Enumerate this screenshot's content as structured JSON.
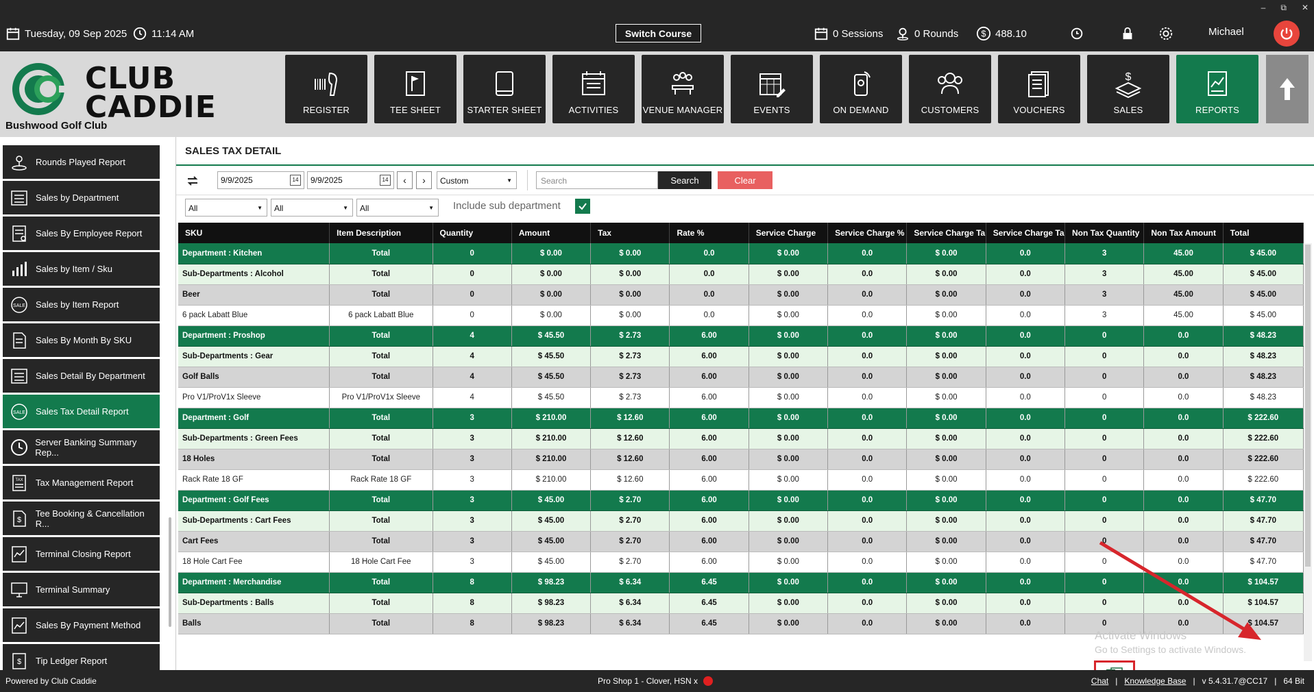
{
  "topbar": {
    "date": "Tuesday,  09 Sep 2025",
    "time": "11:14 AM",
    "switch_course": "Switch Course",
    "sessions": "0 Sessions",
    "rounds": "0 Rounds",
    "balance": "488.10",
    "user": "Michael"
  },
  "brand": {
    "line1": "CLUB",
    "line2": "CADDIE",
    "club_name": "Bushwood Golf Club"
  },
  "nav": [
    {
      "label": "REGISTER",
      "icon": "barcode-scanner-icon"
    },
    {
      "label": "TEE SHEET",
      "icon": "flag-icon"
    },
    {
      "label": "STARTER SHEET",
      "icon": "tablet-icon"
    },
    {
      "label": "ACTIVITIES",
      "icon": "calendar-list-icon"
    },
    {
      "label": "VENUE MANAGER",
      "icon": "group-table-icon"
    },
    {
      "label": "EVENTS",
      "icon": "calendar-edit-icon"
    },
    {
      "label": "ON DEMAND",
      "icon": "phone-signal-icon"
    },
    {
      "label": "CUSTOMERS",
      "icon": "people-icon"
    },
    {
      "label": "VOUCHERS",
      "icon": "voucher-icon"
    },
    {
      "label": "SALES",
      "icon": "dollar-stack-icon"
    },
    {
      "label": "REPORTS",
      "icon": "report-chart-icon"
    }
  ],
  "sidebar": {
    "items": [
      {
        "label": "Rounds Played Report",
        "icon": "golf-tee-icon",
        "active": false
      },
      {
        "label": "Sales by Department",
        "icon": "list-icon",
        "active": false
      },
      {
        "label": "Sales By Employee Report",
        "icon": "employee-report-icon",
        "active": false
      },
      {
        "label": "Sales by Item / Sku",
        "icon": "bar-chart-icon",
        "active": false
      },
      {
        "label": "Sales by Item Report",
        "icon": "sale-tag-icon",
        "active": false
      },
      {
        "label": "Sales By Month By SKU",
        "icon": "document-icon",
        "active": false
      },
      {
        "label": "Sales Detail By Department",
        "icon": "list-icon",
        "active": false
      },
      {
        "label": "Sales Tax Detail Report",
        "icon": "sale-tag-icon",
        "active": true
      },
      {
        "label": "Server Banking Summary Rep...",
        "icon": "clock-icon",
        "active": false
      },
      {
        "label": "Tax Management Report",
        "icon": "tax-doc-icon",
        "active": false
      },
      {
        "label": "Tee Booking & Cancellation R...",
        "icon": "document-dollar-icon",
        "active": false
      },
      {
        "label": "Terminal Closing Report",
        "icon": "terminal-report-icon",
        "active": false
      },
      {
        "label": "Terminal Summary",
        "icon": "monitor-icon",
        "active": false
      },
      {
        "label": "Sales By Payment Method",
        "icon": "chart-doc-icon",
        "active": false
      },
      {
        "label": "Tip Ledger Report",
        "icon": "ledger-icon",
        "active": false
      }
    ]
  },
  "report": {
    "title": "SALES TAX DETAIL",
    "date_from": "9/9/2025",
    "date_to": "9/9/2025",
    "period": "Custom",
    "search_placeholder": "Search",
    "search_label": "Search",
    "clear_label": "Clear",
    "filter1": "All",
    "filter2": "All",
    "filter3": "All",
    "include_sub": "Include sub department",
    "columns": [
      "SKU",
      "Item Description",
      "Quantity",
      "Amount",
      "Tax",
      "Rate %",
      "Service Charge",
      "Service Charge %",
      "Service Charge Ta",
      "Service Charge Ta",
      "Non Tax Quantity",
      "Non Tax Amount",
      "Total"
    ],
    "rows": [
      {
        "type": "dept",
        "cells": [
          "Department : Kitchen",
          "Total",
          "0",
          "$ 0.00",
          "$ 0.00",
          "0.0",
          "$ 0.00",
          "0.0",
          "$ 0.00",
          "0.0",
          "3",
          "45.00",
          "$ 45.00"
        ]
      },
      {
        "type": "sub",
        "cells": [
          "Sub-Departments : Alcohol",
          "Total",
          "0",
          "$ 0.00",
          "$ 0.00",
          "0.0",
          "$ 0.00",
          "0.0",
          "$ 0.00",
          "0.0",
          "3",
          "45.00",
          "$ 45.00"
        ]
      },
      {
        "type": "grp",
        "cells": [
          "Beer",
          "Total",
          "0",
          "$ 0.00",
          "$ 0.00",
          "0.0",
          "$ 0.00",
          "0.0",
          "$ 0.00",
          "0.0",
          "3",
          "45.00",
          "$ 45.00"
        ]
      },
      {
        "type": "item",
        "cells": [
          "6 pack Labatt Blue",
          "6 pack Labatt Blue",
          "0",
          "$ 0.00",
          "$ 0.00",
          "0.0",
          "$ 0.00",
          "0.0",
          "$ 0.00",
          "0.0",
          "3",
          "45.00",
          "$ 45.00"
        ]
      },
      {
        "type": "dept",
        "cells": [
          "Department : Proshop",
          "Total",
          "4",
          "$ 45.50",
          "$ 2.73",
          "6.00",
          "$ 0.00",
          "0.0",
          "$ 0.00",
          "0.0",
          "0",
          "0.0",
          "$ 48.23"
        ]
      },
      {
        "type": "sub",
        "cells": [
          "Sub-Departments : Gear",
          "Total",
          "4",
          "$ 45.50",
          "$ 2.73",
          "6.00",
          "$ 0.00",
          "0.0",
          "$ 0.00",
          "0.0",
          "0",
          "0.0",
          "$ 48.23"
        ]
      },
      {
        "type": "grp",
        "cells": [
          "Golf Balls",
          "Total",
          "4",
          "$ 45.50",
          "$ 2.73",
          "6.00",
          "$ 0.00",
          "0.0",
          "$ 0.00",
          "0.0",
          "0",
          "0.0",
          "$ 48.23"
        ]
      },
      {
        "type": "item",
        "cells": [
          "Pro V1/ProV1x Sleeve",
          "Pro V1/ProV1x Sleeve",
          "4",
          "$ 45.50",
          "$ 2.73",
          "6.00",
          "$ 0.00",
          "0.0",
          "$ 0.00",
          "0.0",
          "0",
          "0.0",
          "$ 48.23"
        ]
      },
      {
        "type": "dept",
        "cells": [
          "Department : Golf",
          "Total",
          "3",
          "$ 210.00",
          "$ 12.60",
          "6.00",
          "$ 0.00",
          "0.0",
          "$ 0.00",
          "0.0",
          "0",
          "0.0",
          "$ 222.60"
        ]
      },
      {
        "type": "sub",
        "cells": [
          "Sub-Departments : Green Fees",
          "Total",
          "3",
          "$ 210.00",
          "$ 12.60",
          "6.00",
          "$ 0.00",
          "0.0",
          "$ 0.00",
          "0.0",
          "0",
          "0.0",
          "$ 222.60"
        ]
      },
      {
        "type": "grp",
        "cells": [
          "18 Holes",
          "Total",
          "3",
          "$ 210.00",
          "$ 12.60",
          "6.00",
          "$ 0.00",
          "0.0",
          "$ 0.00",
          "0.0",
          "0",
          "0.0",
          "$ 222.60"
        ]
      },
      {
        "type": "item",
        "cells": [
          "Rack Rate 18 GF",
          "Rack Rate 18 GF",
          "3",
          "$ 210.00",
          "$ 12.60",
          "6.00",
          "$ 0.00",
          "0.0",
          "$ 0.00",
          "0.0",
          "0",
          "0.0",
          "$ 222.60"
        ]
      },
      {
        "type": "dept",
        "cells": [
          "Department : Golf Fees",
          "Total",
          "3",
          "$ 45.00",
          "$ 2.70",
          "6.00",
          "$ 0.00",
          "0.0",
          "$ 0.00",
          "0.0",
          "0",
          "0.0",
          "$ 47.70"
        ]
      },
      {
        "type": "sub",
        "cells": [
          "Sub-Departments : Cart Fees",
          "Total",
          "3",
          "$ 45.00",
          "$ 2.70",
          "6.00",
          "$ 0.00",
          "0.0",
          "$ 0.00",
          "0.0",
          "0",
          "0.0",
          "$ 47.70"
        ]
      },
      {
        "type": "grp",
        "cells": [
          "Cart Fees",
          "Total",
          "3",
          "$ 45.00",
          "$ 2.70",
          "6.00",
          "$ 0.00",
          "0.0",
          "$ 0.00",
          "0.0",
          "0",
          "0.0",
          "$ 47.70"
        ]
      },
      {
        "type": "item",
        "cells": [
          "18 Hole Cart Fee",
          "18 Hole Cart Fee",
          "3",
          "$ 45.00",
          "$ 2.70",
          "6.00",
          "$ 0.00",
          "0.0",
          "$ 0.00",
          "0.0",
          "0",
          "0.0",
          "$ 47.70"
        ]
      },
      {
        "type": "dept",
        "cells": [
          "Department : Merchandise",
          "Total",
          "8",
          "$ 98.23",
          "$ 6.34",
          "6.45",
          "$ 0.00",
          "0.0",
          "$ 0.00",
          "0.0",
          "0",
          "0.0",
          "$ 104.57"
        ]
      },
      {
        "type": "sub",
        "cells": [
          "Sub-Departments : Balls",
          "Total",
          "8",
          "$ 98.23",
          "$ 6.34",
          "6.45",
          "$ 0.00",
          "0.0",
          "$ 0.00",
          "0.0",
          "0",
          "0.0",
          "$ 104.57"
        ]
      },
      {
        "type": "grp",
        "cells": [
          "Balls",
          "Total",
          "8",
          "$ 98.23",
          "$ 6.34",
          "6.45",
          "$ 0.00",
          "0.0",
          "$ 0.00",
          "0.0",
          "0",
          "0.0",
          "$ 104.57"
        ]
      }
    ]
  },
  "watermark": {
    "line1": "Activate Windows",
    "line2": "Go to Settings to activate Windows."
  },
  "footer": {
    "powered": "Powered by Club Caddie",
    "terminal": "Pro Shop 1 - Clover, HSN x",
    "chat": "Chat",
    "kb": "Knowledge Base",
    "version": "v 5.4.31.7@CC17",
    "bits": "64 Bit"
  },
  "colors": {
    "brand_green": "#137a4d",
    "dark": "#262626",
    "clear_red": "#e86060",
    "power_red": "#e8453c"
  }
}
